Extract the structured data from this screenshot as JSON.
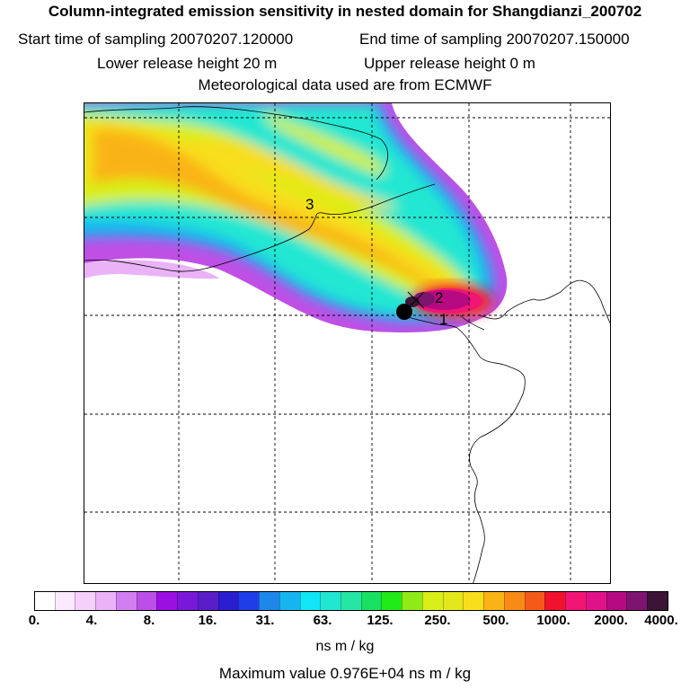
{
  "header": {
    "title": "Column-integrated emission sensitivity in nested domain for Shangdianzi_200702",
    "start_label": "Start time of sampling 20070207.120000",
    "end_label": "End time of sampling 20070207.150000",
    "lower_label": "Lower release height   20 m",
    "upper_label": "Upper release height    0 m",
    "met_label": "Meteorological data used are from ECMWF"
  },
  "map": {
    "markers": [
      "1",
      "2",
      "3"
    ]
  },
  "colorbar": {
    "ticks": [
      "0.",
      "4.",
      "8.",
      "16.",
      "31.",
      "63.",
      "125.",
      "250.",
      "500.",
      "1000.",
      "2000.",
      "4000."
    ],
    "unit": "ns m / kg",
    "colors": [
      "#ffffff",
      "#fbeafe",
      "#f4d0fb",
      "#eab2f7",
      "#d07ef0",
      "#bb4fe8",
      "#9a10e0",
      "#7a18d8",
      "#5a1ec8",
      "#2b1dd0",
      "#1f3ee8",
      "#1f86ea",
      "#17b5f0",
      "#10e6f6",
      "#21e7d2",
      "#26e6a5",
      "#19e063",
      "#21ea19",
      "#90ea17",
      "#d8ef19",
      "#e2e81a",
      "#f8de1b",
      "#fab317",
      "#f88b16",
      "#f45b1a",
      "#f1132d",
      "#f11673",
      "#e01289",
      "#b60a82",
      "#7d1570",
      "#3b1437"
    ]
  },
  "max_value": "Maximum value  0.976E+04 ns m / kg"
}
